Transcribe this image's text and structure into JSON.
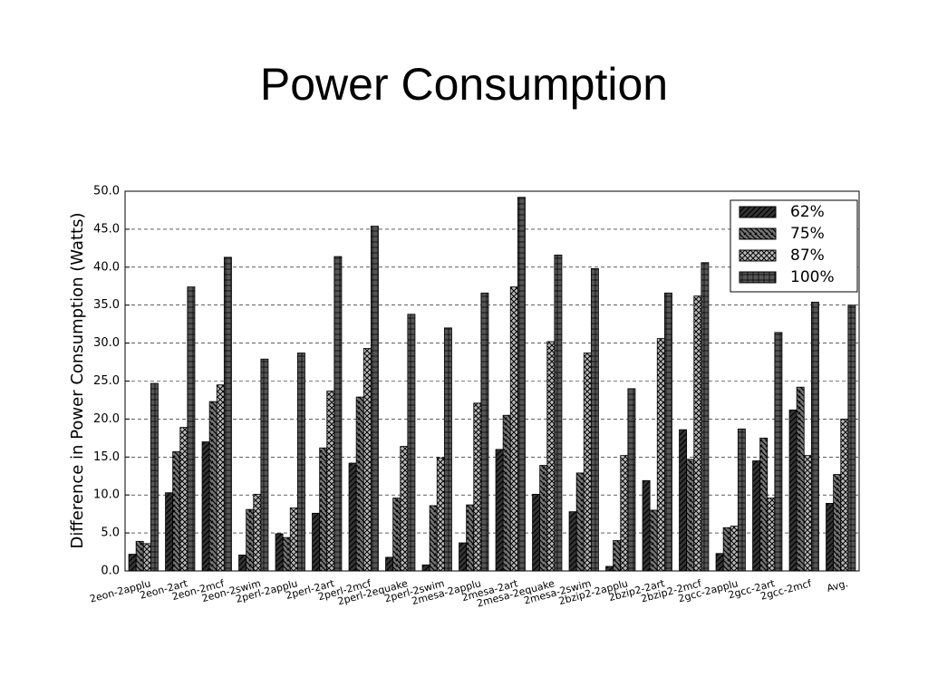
{
  "chart_data": {
    "type": "bar",
    "title": "Power Consumption",
    "y_label": "Difference in Power Consumption (Watts)",
    "categories": [
      "2eon-2applu",
      "2eon-2art",
      "2eon-2mcf",
      "2eon-2swim",
      "2perl-2applu",
      "2perl-2art",
      "2perl-2mcf",
      "2perl-2equake",
      "2perl-2swim",
      "2mesa-2applu",
      "2mesa-2art",
      "2mesa-2equake",
      "2mesa-2swim",
      "2bzip2-2applu",
      "2bzip2-2art",
      "2bzip2-2mcf",
      "2gcc-2applu",
      "2gcc-2art",
      "2gcc-2mcf",
      "Avg."
    ],
    "series": [
      {
        "name": "62%",
        "color": "#333333",
        "values": [
          2.2,
          10.3,
          17.0,
          2.1,
          4.9,
          7.6,
          14.2,
          1.8,
          0.8,
          3.7,
          16.0,
          10.1,
          7.8,
          0.6,
          11.9,
          18.6,
          2.3,
          14.5,
          21.2,
          8.9
        ]
      },
      {
        "name": "75%",
        "color": "#777777",
        "values": [
          3.9,
          15.7,
          22.3,
          8.1,
          4.4,
          16.2,
          22.9,
          9.6,
          8.6,
          8.7,
          20.5,
          13.9,
          12.9,
          4.0,
          8.0,
          14.7,
          5.7,
          17.5,
          24.2,
          12.7
        ]
      },
      {
        "name": "87%",
        "color": "#bbbbbb",
        "values": [
          3.6,
          18.9,
          24.5,
          10.1,
          8.3,
          23.7,
          29.3,
          16.4,
          14.9,
          22.1,
          37.4,
          30.2,
          28.7,
          15.2,
          30.6,
          36.2,
          5.9,
          9.6,
          15.2,
          20.0
        ]
      },
      {
        "name": "100%",
        "color": "#555555",
        "values": [
          24.7,
          37.4,
          41.3,
          27.9,
          28.7,
          41.4,
          45.4,
          33.8,
          32.0,
          36.6,
          49.2,
          41.6,
          39.8,
          24.0,
          36.6,
          40.6,
          18.7,
          31.4,
          35.4,
          35.0
        ]
      }
    ],
    "ylim": [
      0,
      50
    ],
    "yticks": [
      {
        "value": 0,
        "label": "0.0"
      },
      {
        "value": 5,
        "label": "5.0"
      },
      {
        "value": 10,
        "label": "10.0"
      },
      {
        "value": 15,
        "label": "15.0"
      },
      {
        "value": 20,
        "label": "20.0"
      },
      {
        "value": 25,
        "label": "25.0"
      },
      {
        "value": 30,
        "label": "30.0"
      },
      {
        "value": 35,
        "label": "35.0"
      },
      {
        "value": 40,
        "label": "40.0"
      },
      {
        "value": 45,
        "label": "45.0"
      },
      {
        "value": 50,
        "label": "50.0"
      }
    ],
    "grid": true,
    "legend": "upper right"
  }
}
